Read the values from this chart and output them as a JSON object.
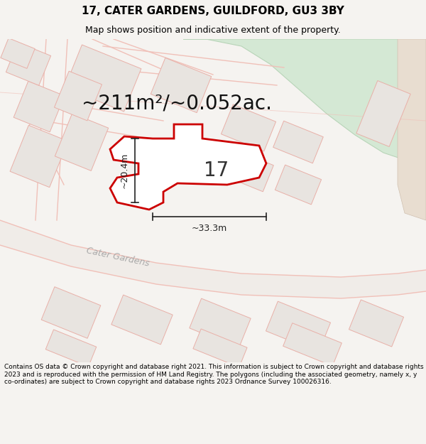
{
  "title_line1": "17, CATER GARDENS, GUILDFORD, GU3 3BY",
  "title_line2": "Map shows position and indicative extent of the property.",
  "area_text": "~211m²/~0.052ac.",
  "dim_width": "~33.3m",
  "dim_height": "~20.4m",
  "label_17": "17",
  "footer": "Contains OS data © Crown copyright and database right 2021. This information is subject to Crown copyright and database rights 2023 and is reproduced with the permission of HM Land Registry. The polygons (including the associated geometry, namely x, y co-ordinates) are subject to Crown copyright and database rights 2023 Ordnance Survey 100026316.",
  "bg_color": "#f5f3f0",
  "map_bg": "#f8f6f3",
  "building_fill": "#f0eeed",
  "building_edge": "#e8b0a8",
  "building_fill2": "#e8e4e0",
  "green_fill": "#d4e8d4",
  "green_edge": "#b8d4b8",
  "tan_fill": "#e8ddd0",
  "road_label_color": "#aaaaaa",
  "selected_color": "#cc0000",
  "dim_color": "#222222",
  "area_color": "#111111",
  "title_fontsize": 11,
  "subtitle_fontsize": 9,
  "area_fontsize": 20,
  "footer_fontsize": 6.5,
  "label_fontsize": 20,
  "fig_width": 6.0,
  "fig_height": 6.25
}
